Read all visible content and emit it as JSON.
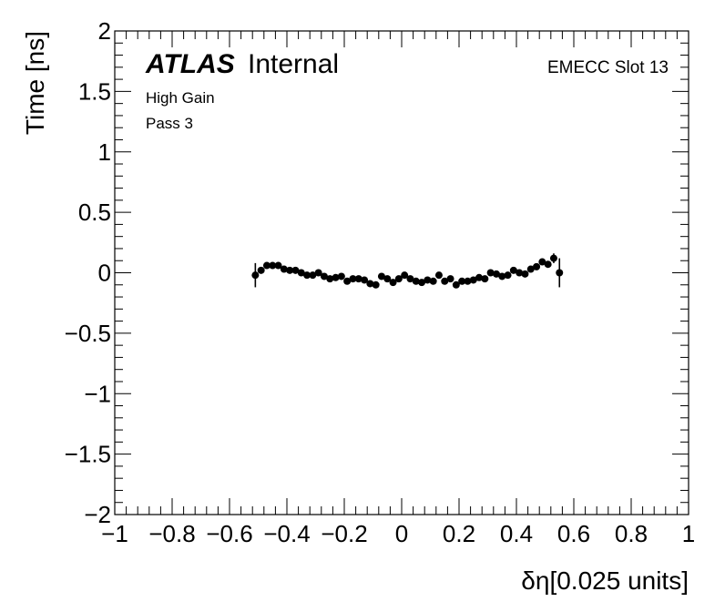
{
  "chart_data": {
    "type": "scatter",
    "title": "",
    "xlabel": "δη[0.025 units]",
    "ylabel": "Time [ns]",
    "xlim": [
      -1,
      1
    ],
    "ylim": [
      -2,
      2
    ],
    "x_ticks": [
      -1,
      -0.8,
      -0.6,
      -0.4,
      -0.2,
      0,
      0.2,
      0.4,
      0.6,
      0.8,
      1
    ],
    "x_tick_labels": [
      "−1",
      "−0.8",
      "−0.6",
      "−0.4",
      "−0.2",
      "0",
      "0.2",
      "0.4",
      "0.6",
      "0.8",
      "1"
    ],
    "y_ticks": [
      -2,
      -1.5,
      -1,
      -0.5,
      0,
      0.5,
      1,
      1.5,
      2
    ],
    "y_tick_labels": [
      "−2",
      "−1.5",
      "−1",
      "−0.5",
      "0",
      "0.5",
      "1",
      "1.5",
      "2"
    ],
    "annotations": {
      "experiment": "ATLAS",
      "status": "Internal",
      "gain": "High Gain",
      "pass": "Pass 3",
      "slot": "EMECC Slot 13"
    },
    "grid": false,
    "series": [
      {
        "marker_color": "#000000",
        "points": [
          {
            "x": -0.51,
            "y": -0.02,
            "err": 0.1
          },
          {
            "x": -0.49,
            "y": 0.02,
            "err": 0.02
          },
          {
            "x": -0.47,
            "y": 0.06,
            "err": 0.02
          },
          {
            "x": -0.45,
            "y": 0.06,
            "err": 0.02
          },
          {
            "x": -0.43,
            "y": 0.06,
            "err": 0.02
          },
          {
            "x": -0.41,
            "y": 0.03,
            "err": 0.02
          },
          {
            "x": -0.39,
            "y": 0.02,
            "err": 0.02
          },
          {
            "x": -0.37,
            "y": 0.02,
            "err": 0.02
          },
          {
            "x": -0.35,
            "y": 0.0,
            "err": 0.02
          },
          {
            "x": -0.33,
            "y": -0.02,
            "err": 0.02
          },
          {
            "x": -0.31,
            "y": -0.02,
            "err": 0.02
          },
          {
            "x": -0.29,
            "y": 0.0,
            "err": 0.02
          },
          {
            "x": -0.27,
            "y": -0.03,
            "err": 0.02
          },
          {
            "x": -0.25,
            "y": -0.05,
            "err": 0.02
          },
          {
            "x": -0.23,
            "y": -0.04,
            "err": 0.02
          },
          {
            "x": -0.21,
            "y": -0.03,
            "err": 0.02
          },
          {
            "x": -0.19,
            "y": -0.07,
            "err": 0.02
          },
          {
            "x": -0.17,
            "y": -0.05,
            "err": 0.02
          },
          {
            "x": -0.15,
            "y": -0.05,
            "err": 0.02
          },
          {
            "x": -0.13,
            "y": -0.06,
            "err": 0.02
          },
          {
            "x": -0.11,
            "y": -0.09,
            "err": 0.02
          },
          {
            "x": -0.09,
            "y": -0.1,
            "err": 0.02
          },
          {
            "x": -0.07,
            "y": -0.03,
            "err": 0.02
          },
          {
            "x": -0.05,
            "y": -0.05,
            "err": 0.02
          },
          {
            "x": -0.03,
            "y": -0.08,
            "err": 0.02
          },
          {
            "x": -0.01,
            "y": -0.05,
            "err": 0.02
          },
          {
            "x": 0.01,
            "y": -0.02,
            "err": 0.02
          },
          {
            "x": 0.03,
            "y": -0.05,
            "err": 0.02
          },
          {
            "x": 0.05,
            "y": -0.07,
            "err": 0.02
          },
          {
            "x": 0.07,
            "y": -0.08,
            "err": 0.02
          },
          {
            "x": 0.09,
            "y": -0.06,
            "err": 0.02
          },
          {
            "x": 0.11,
            "y": -0.07,
            "err": 0.02
          },
          {
            "x": 0.13,
            "y": -0.02,
            "err": 0.02
          },
          {
            "x": 0.15,
            "y": -0.07,
            "err": 0.02
          },
          {
            "x": 0.17,
            "y": -0.05,
            "err": 0.02
          },
          {
            "x": 0.19,
            "y": -0.1,
            "err": 0.02
          },
          {
            "x": 0.21,
            "y": -0.07,
            "err": 0.02
          },
          {
            "x": 0.23,
            "y": -0.07,
            "err": 0.02
          },
          {
            "x": 0.25,
            "y": -0.06,
            "err": 0.02
          },
          {
            "x": 0.27,
            "y": -0.04,
            "err": 0.02
          },
          {
            "x": 0.29,
            "y": -0.05,
            "err": 0.02
          },
          {
            "x": 0.31,
            "y": 0.0,
            "err": 0.02
          },
          {
            "x": 0.33,
            "y": -0.01,
            "err": 0.02
          },
          {
            "x": 0.35,
            "y": -0.03,
            "err": 0.02
          },
          {
            "x": 0.37,
            "y": -0.02,
            "err": 0.02
          },
          {
            "x": 0.39,
            "y": 0.02,
            "err": 0.02
          },
          {
            "x": 0.41,
            "y": 0.0,
            "err": 0.02
          },
          {
            "x": 0.43,
            "y": -0.01,
            "err": 0.02
          },
          {
            "x": 0.45,
            "y": 0.03,
            "err": 0.02
          },
          {
            "x": 0.47,
            "y": 0.05,
            "err": 0.02
          },
          {
            "x": 0.49,
            "y": 0.09,
            "err": 0.02
          },
          {
            "x": 0.51,
            "y": 0.07,
            "err": 0.02
          },
          {
            "x": 0.53,
            "y": 0.12,
            "err": 0.04
          },
          {
            "x": 0.55,
            "y": 0.0,
            "err": 0.12
          }
        ]
      }
    ]
  }
}
